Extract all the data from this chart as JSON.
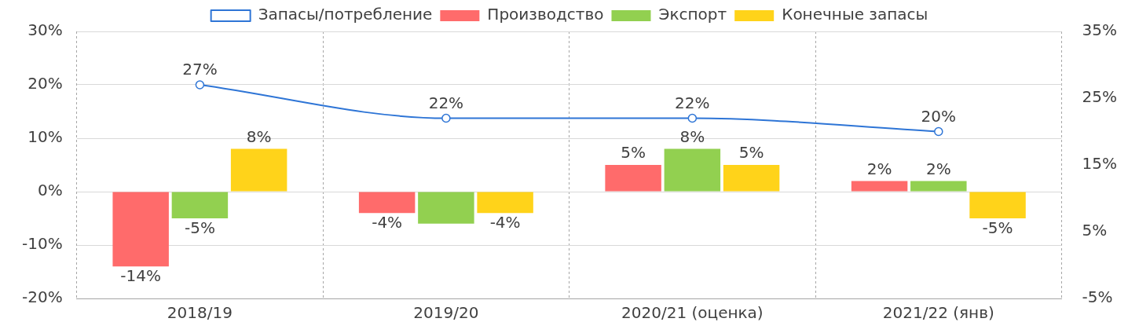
{
  "chart_data": {
    "type": "bar",
    "categories": [
      "2018/19",
      "2019/20",
      "2020/21 (оценка)",
      "2021/22 (янв)"
    ],
    "series": [
      {
        "name": "Производство",
        "color": "#ff6b6b",
        "values": [
          -14,
          -4,
          5,
          2
        ],
        "value_labels": [
          "-14%",
          "-4%",
          "5%",
          "2%"
        ]
      },
      {
        "name": "Экспорт",
        "color": "#92d050",
        "values": [
          -5,
          -6,
          8,
          2
        ],
        "value_labels": [
          "-5%",
          null,
          "8%",
          "2%"
        ]
      },
      {
        "name": "Конечные запасы",
        "color": "#ffd31a",
        "values": [
          8,
          -4,
          5,
          -5
        ],
        "value_labels": [
          "8%",
          "-4%",
          "5%",
          "-5%"
        ]
      },
      {
        "name": "Запасы/потребление",
        "type": "line",
        "axis": "y2",
        "color": "#2e75d6",
        "marker": "circle",
        "values": [
          27,
          22,
          22,
          20
        ],
        "value_labels": [
          "27%",
          "22%",
          "22%",
          "20%"
        ]
      }
    ],
    "ylim": [
      -20,
      30
    ],
    "yticks": [
      {
        "value": -20,
        "label": "-20%"
      },
      {
        "value": -10,
        "label": "-10%"
      },
      {
        "value": 0,
        "label": "0%"
      },
      {
        "value": 10,
        "label": "10%"
      },
      {
        "value": 20,
        "label": "20%"
      },
      {
        "value": 30,
        "label": "30%"
      }
    ],
    "y2lim": [
      -5,
      35
    ],
    "y2ticks": [
      {
        "value": -5,
        "label": "-5%"
      },
      {
        "value": 5,
        "label": "5%"
      },
      {
        "value": 15,
        "label": "15%"
      },
      {
        "value": 25,
        "label": "25%"
      },
      {
        "value": 35,
        "label": "35%"
      }
    ],
    "grid": true,
    "legend": "top"
  }
}
